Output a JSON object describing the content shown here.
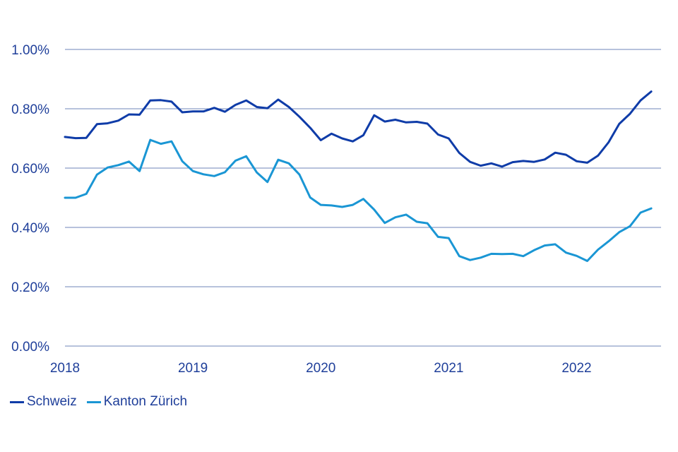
{
  "chart_data": {
    "type": "line",
    "ylim": [
      0,
      1.0
    ],
    "y_ticks": [
      "0.00%",
      "0.20%",
      "0.40%",
      "0.60%",
      "0.80%",
      "1.00%"
    ],
    "y_tick_values": [
      0,
      0.2,
      0.4,
      0.6,
      0.8,
      1.0
    ],
    "x_ticks": [
      "2018",
      "2019",
      "2020",
      "2021",
      "2022"
    ],
    "x_tick_values": [
      2018.0,
      2019.0,
      2020.0,
      2021.0,
      2022.0
    ],
    "xlim": [
      2018.0,
      2022.66
    ],
    "grid": true,
    "legend_position": "bottom-left",
    "series": [
      {
        "name": "Schweiz",
        "color": "#0f3ca8",
        "x": [
          2018.0,
          2018.083,
          2018.167,
          2018.25,
          2018.333,
          2018.417,
          2018.5,
          2018.583,
          2018.667,
          2018.75,
          2018.833,
          2018.917,
          2019.0,
          2019.083,
          2019.167,
          2019.25,
          2019.333,
          2019.417,
          2019.5,
          2019.583,
          2019.667,
          2019.75,
          2019.833,
          2019.917,
          2020.0,
          2020.083,
          2020.167,
          2020.25,
          2020.333,
          2020.417,
          2020.5,
          2020.583,
          2020.667,
          2020.75,
          2020.833,
          2020.917,
          2021.0,
          2021.083,
          2021.167,
          2021.25,
          2021.333,
          2021.417,
          2021.5,
          2021.583,
          2021.667,
          2021.75,
          2021.833,
          2021.917,
          2022.0,
          2022.083,
          2022.167,
          2022.25,
          2022.333,
          2022.417,
          2022.5,
          2022.583
        ],
        "values": [
          0.705,
          0.701,
          0.702,
          0.748,
          0.751,
          0.76,
          0.781,
          0.78,
          0.828,
          0.829,
          0.824,
          0.788,
          0.791,
          0.791,
          0.803,
          0.79,
          0.813,
          0.828,
          0.806,
          0.802,
          0.831,
          0.806,
          0.773,
          0.736,
          0.694,
          0.716,
          0.7,
          0.69,
          0.711,
          0.778,
          0.757,
          0.763,
          0.754,
          0.756,
          0.75,
          0.713,
          0.7,
          0.651,
          0.621,
          0.608,
          0.616,
          0.605,
          0.62,
          0.624,
          0.621,
          0.629,
          0.652,
          0.645,
          0.623,
          0.618,
          0.642,
          0.687,
          0.749,
          0.783,
          0.828,
          0.858
        ]
      },
      {
        "name": "Kanton Zürich",
        "color": "#1a96d4",
        "x": [
          2018.0,
          2018.083,
          2018.167,
          2018.25,
          2018.333,
          2018.417,
          2018.5,
          2018.583,
          2018.667,
          2018.75,
          2018.833,
          2018.917,
          2019.0,
          2019.083,
          2019.167,
          2019.25,
          2019.333,
          2019.417,
          2019.5,
          2019.583,
          2019.667,
          2019.75,
          2019.833,
          2019.917,
          2020.0,
          2020.083,
          2020.167,
          2020.25,
          2020.333,
          2020.417,
          2020.5,
          2020.583,
          2020.667,
          2020.75,
          2020.833,
          2020.917,
          2021.0,
          2021.083,
          2021.167,
          2021.25,
          2021.333,
          2021.417,
          2021.5,
          2021.583,
          2021.667,
          2021.75,
          2021.833,
          2021.917,
          2022.0,
          2022.083,
          2022.167,
          2022.25,
          2022.333,
          2022.417,
          2022.5,
          2022.583
        ],
        "values": [
          0.5,
          0.5,
          0.513,
          0.578,
          0.602,
          0.61,
          0.622,
          0.59,
          0.695,
          0.682,
          0.69,
          0.623,
          0.59,
          0.579,
          0.573,
          0.586,
          0.625,
          0.64,
          0.585,
          0.553,
          0.628,
          0.616,
          0.578,
          0.501,
          0.476,
          0.474,
          0.469,
          0.476,
          0.496,
          0.46,
          0.415,
          0.434,
          0.443,
          0.419,
          0.414,
          0.368,
          0.364,
          0.303,
          0.29,
          0.298,
          0.311,
          0.31,
          0.311,
          0.303,
          0.323,
          0.339,
          0.343,
          0.315,
          0.304,
          0.287,
          0.325,
          0.353,
          0.384,
          0.404,
          0.45,
          0.464
        ]
      }
    ]
  }
}
